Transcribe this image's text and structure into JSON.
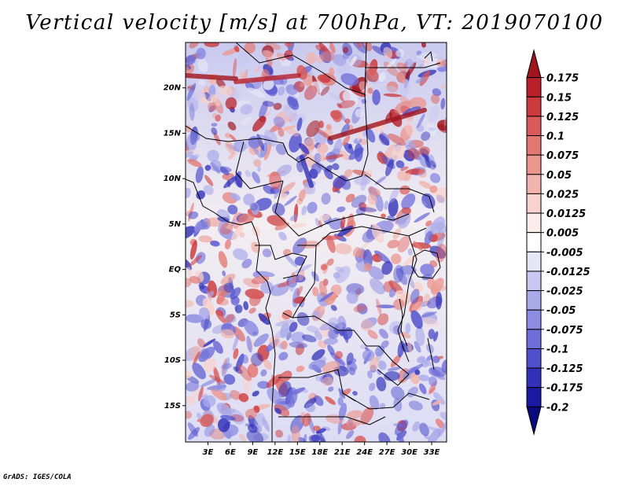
{
  "title": "Vertical velocity [m/s] at 700hPa, VT: 2019070100",
  "credit": "GrADS: IGES/COLA",
  "map": {
    "lon_range": [
      0,
      35
    ],
    "lat_range": [
      -19,
      25
    ],
    "lat_labels": [
      "20N",
      "15N",
      "10N",
      "5N",
      "EQ",
      "5S",
      "10S",
      "15S"
    ],
    "lat_values": [
      20,
      15,
      10,
      5,
      0,
      -5,
      -10,
      -15
    ],
    "lon_labels": [
      "3E",
      "6E",
      "9E",
      "12E",
      "15E",
      "18E",
      "21E",
      "24E",
      "27E",
      "30E",
      "33E"
    ],
    "lon_values": [
      3,
      6,
      9,
      12,
      15,
      18,
      21,
      24,
      27,
      30,
      33
    ]
  },
  "colorbar": {
    "labels": [
      "0.175",
      "0.15",
      "0.125",
      "0.1",
      "0.075",
      "0.05",
      "0.025",
      "0.0125",
      "0.005",
      "-0.005",
      "-0.0125",
      "-0.025",
      "-0.05",
      "-0.075",
      "-0.1",
      "-0.125",
      "-0.175",
      "-0.2"
    ],
    "colors": [
      "#a0141e",
      "#b8202a",
      "#cc3a3e",
      "#d95a58",
      "#e27872",
      "#eb968e",
      "#f2b4ac",
      "#f8d2cc",
      "#fcecea",
      "#ffffff",
      "#e6e6f8",
      "#c8c8f2",
      "#aaaaea",
      "#8c8ce2",
      "#6e6ed8",
      "#5050cc",
      "#3232b8",
      "#1a1aa0",
      "#0a0a80"
    ]
  }
}
